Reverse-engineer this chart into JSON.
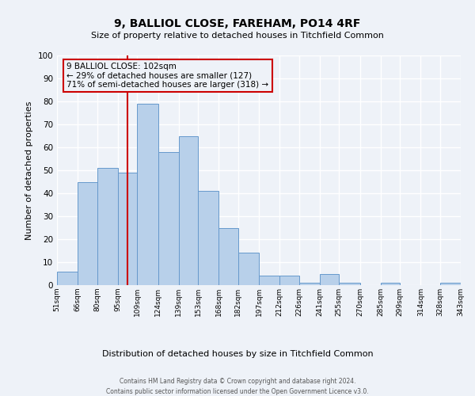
{
  "title": "9, BALLIOL CLOSE, FAREHAM, PO14 4RF",
  "subtitle": "Size of property relative to detached houses in Titchfield Common",
  "xlabel": "Distribution of detached houses by size in Titchfield Common",
  "ylabel": "Number of detached properties",
  "all_values": [
    6,
    45,
    51,
    49,
    79,
    58,
    65,
    41,
    25,
    14,
    4,
    4,
    1,
    5,
    1,
    0,
    1,
    0,
    0,
    1
  ],
  "bin_edges": [
    51,
    66,
    80,
    95,
    109,
    124,
    139,
    153,
    168,
    182,
    197,
    212,
    226,
    241,
    255,
    270,
    285,
    299,
    314,
    328,
    343
  ],
  "tick_labels": [
    "51sqm",
    "66sqm",
    "80sqm",
    "95sqm",
    "109sqm",
    "124sqm",
    "139sqm",
    "153sqm",
    "168sqm",
    "182sqm",
    "197sqm",
    "212sqm",
    "226sqm",
    "241sqm",
    "255sqm",
    "270sqm",
    "285sqm",
    "299sqm",
    "314sqm",
    "328sqm",
    "343sqm"
  ],
  "bar_color": "#b8d0ea",
  "bar_edge_color": "#6699cc",
  "ylim": [
    0,
    100
  ],
  "yticks": [
    0,
    10,
    20,
    30,
    40,
    50,
    60,
    70,
    80,
    90,
    100
  ],
  "property_line_x": 102,
  "property_line_color": "#cc0000",
  "annotation_title": "9 BALLIOL CLOSE: 102sqm",
  "annotation_line1": "← 29% of detached houses are smaller (127)",
  "annotation_line2": "71% of semi-detached houses are larger (318) →",
  "annotation_box_color": "#cc0000",
  "footer_line1": "Contains HM Land Registry data © Crown copyright and database right 2024.",
  "footer_line2": "Contains public sector information licensed under the Open Government Licence v3.0.",
  "bg_color": "#eef2f8",
  "grid_color": "#ffffff",
  "title_fontsize": 10,
  "subtitle_fontsize": 8,
  "ylabel_fontsize": 8,
  "xlabel_fontsize": 8,
  "tick_fontsize": 6.5,
  "ytick_fontsize": 7.5,
  "footer_fontsize": 5.5,
  "annot_fontsize": 7.5
}
